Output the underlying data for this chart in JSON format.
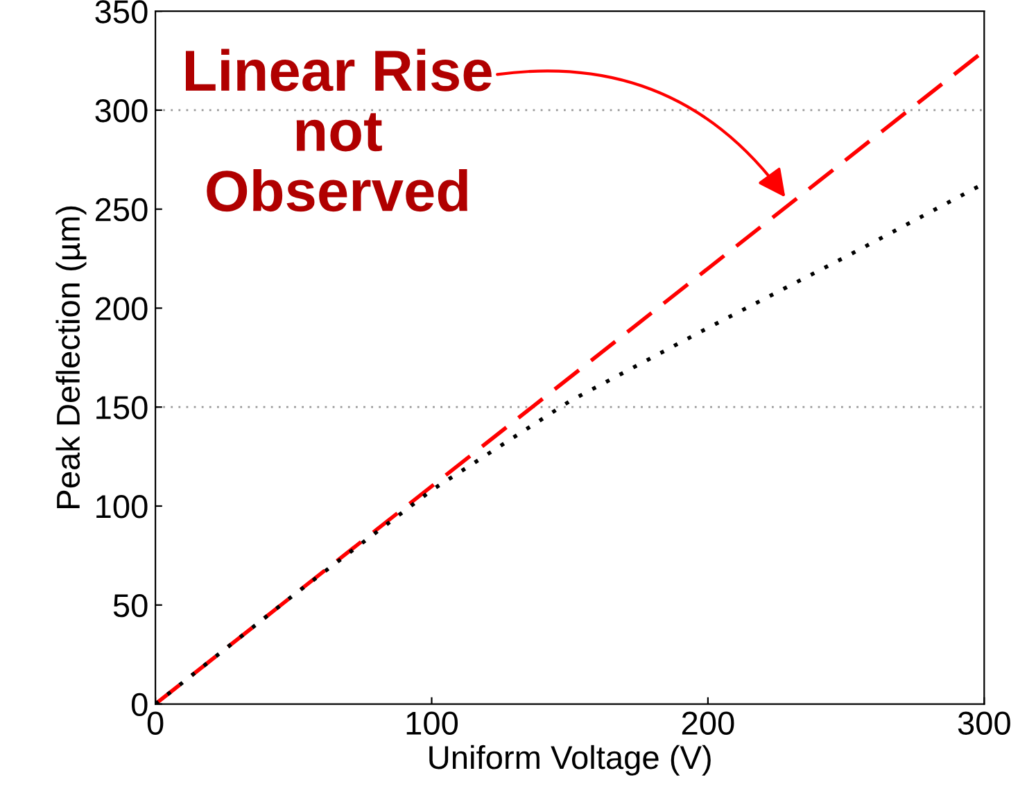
{
  "chart_data": {
    "type": "line",
    "xlabel": "Uniform Voltage (V)",
    "ylabel": "Peak Deflection (µm)",
    "x": [
      0,
      50,
      100,
      150,
      200,
      250,
      300
    ],
    "series": [
      {
        "color": "#ff0000",
        "line_style": "dashed",
        "x": [
          0,
          300
        ],
        "values": [
          0,
          330
        ]
      },
      {
        "color": "#000000",
        "line_style": "dotted",
        "values": [
          0,
          55,
          108,
          153,
          190,
          226,
          263
        ]
      }
    ],
    "xlim": [
      0,
      300
    ],
    "ylim": [
      0,
      350
    ],
    "xticks": [
      0,
      100,
      200,
      300
    ],
    "yticks": [
      0,
      50,
      100,
      150,
      200,
      250,
      300,
      350
    ],
    "grid": false,
    "legend": false,
    "ref_lines": [
      {
        "axis": "y",
        "value": 150,
        "color": "#999999",
        "line_style": "dotted"
      },
      {
        "axis": "y",
        "value": 300,
        "color": "#999999",
        "line_style": "dotted"
      }
    ],
    "annotations": [
      {
        "text": "Linear Rise\nnot\nObserved",
        "x": 228,
        "y": 256
      }
    ]
  }
}
